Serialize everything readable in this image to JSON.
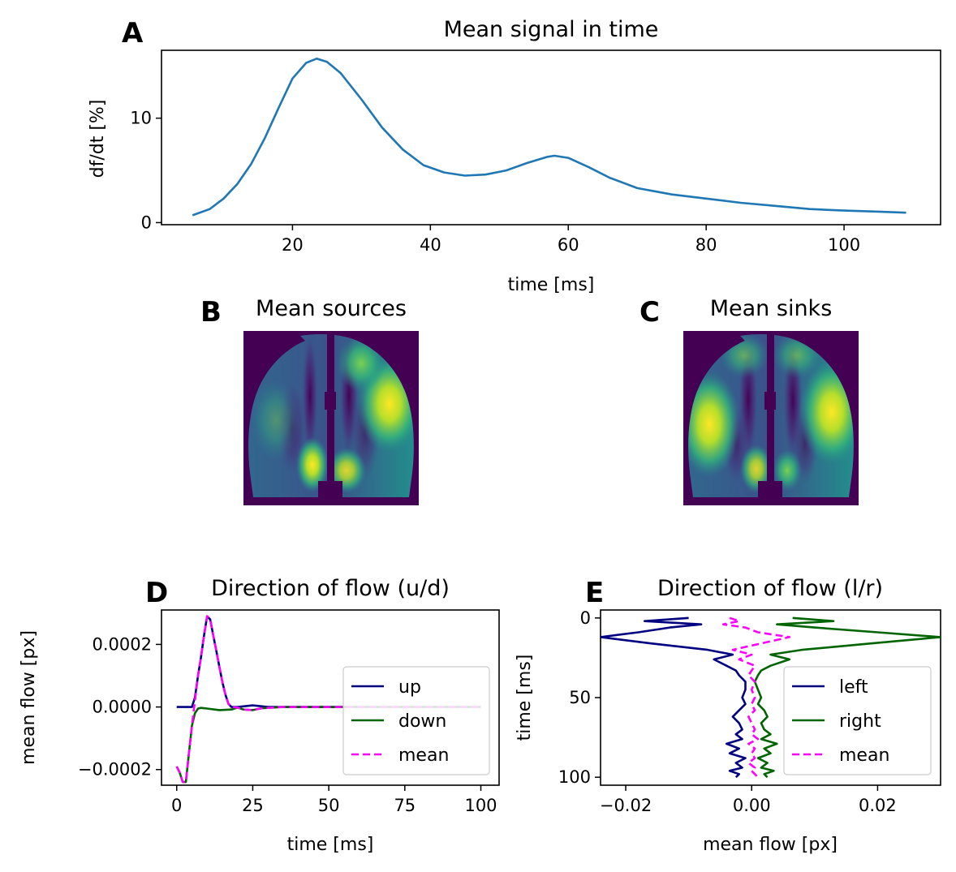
{
  "chart_data": [
    {
      "id": "A",
      "panel_letter": "A",
      "type": "line",
      "title": "Mean signal in time",
      "xlabel": "time [ms]",
      "ylabel": "df/dt [%]",
      "xlim": [
        1,
        114
      ],
      "ylim": [
        -0.2,
        16.5
      ],
      "xticks": [
        20,
        40,
        60,
        80,
        100
      ],
      "yticks": [
        0,
        10
      ],
      "grid": false,
      "series": [
        {
          "color": "#1f77b4",
          "x": [
            5.5,
            8,
            10,
            12,
            14,
            16,
            18,
            20,
            22,
            23.5,
            25,
            27,
            30,
            33,
            36,
            39,
            42,
            45,
            48,
            51,
            54,
            57,
            58,
            60,
            63,
            66,
            70,
            75,
            80,
            85,
            90,
            95,
            100,
            105,
            109
          ],
          "y": [
            0.7,
            1.3,
            2.3,
            3.7,
            5.6,
            8.1,
            11.0,
            13.8,
            15.3,
            15.7,
            15.4,
            14.3,
            11.8,
            9.1,
            7.0,
            5.5,
            4.8,
            4.5,
            4.6,
            5.0,
            5.7,
            6.3,
            6.4,
            6.2,
            5.3,
            4.3,
            3.3,
            2.7,
            2.3,
            1.9,
            1.6,
            1.3,
            1.15,
            1.05,
            0.95
          ]
        }
      ]
    },
    {
      "id": "B",
      "panel_letter": "B",
      "type": "heatmap",
      "title": "Mean sources",
      "colormap": "viridis",
      "axes": "off",
      "hotspots": [
        "right lateral",
        "left posterior-medial",
        "right posterior-medial",
        "right anterior"
      ]
    },
    {
      "id": "C",
      "panel_letter": "C",
      "type": "heatmap",
      "title": "Mean sinks",
      "colormap": "viridis",
      "axes": "off",
      "hotspots": [
        "left lateral",
        "right lateral",
        "left posterior-medial",
        "right posterior-medial"
      ]
    },
    {
      "id": "D",
      "panel_letter": "D",
      "type": "line",
      "title": "Direction of flow (u/d)",
      "xlabel": "time [ms]",
      "ylabel": "mean flow [px]",
      "xlim": [
        -5,
        106
      ],
      "ylim": [
        -0.00025,
        0.00031
      ],
      "xticks": [
        0,
        25,
        50,
        75,
        100
      ],
      "yticks": [
        -0.0002,
        0.0,
        0.0002
      ],
      "ytick_labels": [
        "−0.0002",
        "0.0000",
        "0.0002"
      ],
      "legend": "lower right",
      "series": [
        {
          "name": "up",
          "color": "#000080",
          "style": "solid",
          "x": [
            0,
            5,
            6,
            7,
            8,
            9,
            10,
            11,
            12,
            13,
            14,
            15,
            16,
            17,
            18,
            20,
            25,
            30,
            40,
            100
          ],
          "y": [
            0,
            0,
            3e-05,
            0.0001,
            0.00016,
            0.00023,
            0.00029,
            0.00028,
            0.00023,
            0.00018,
            0.00013,
            8e-05,
            4e-05,
            1e-05,
            0,
            0,
            5e-06,
            0,
            0,
            0
          ]
        },
        {
          "name": "down",
          "color": "#006400",
          "style": "solid",
          "x": [
            0,
            1,
            2,
            3,
            4,
            5,
            6,
            7,
            8,
            10,
            14,
            18,
            20,
            22,
            25,
            28,
            35,
            50,
            100
          ],
          "y": [
            -0.00019,
            -0.00021,
            -0.00024,
            -0.00024,
            -0.00015,
            -6e-05,
            -2e-05,
            -5e-06,
            -3e-06,
            -5e-06,
            -1e-05,
            -8e-06,
            -2e-06,
            -8e-06,
            -1e-05,
            -4e-06,
            0,
            0,
            0
          ]
        },
        {
          "name": "mean",
          "color": "#ff00ff",
          "style": "dashed",
          "x": [
            0,
            1,
            2,
            3,
            4,
            5,
            6,
            7,
            8,
            9,
            10,
            11,
            12,
            13,
            14,
            15,
            16,
            17,
            18,
            20,
            22,
            25,
            28,
            35,
            50,
            100
          ],
          "y": [
            -0.00019,
            -0.00021,
            -0.00024,
            -0.00024,
            -0.00015,
            -6e-05,
            2e-05,
            0.0001,
            0.00016,
            0.00023,
            0.00029,
            0.00028,
            0.00023,
            0.00018,
            0.00013,
            8e-05,
            4e-05,
            1e-05,
            0,
            -2e-06,
            -8e-06,
            -1e-05,
            -4e-06,
            0,
            0,
            0
          ]
        }
      ]
    },
    {
      "id": "E",
      "panel_letter": "E",
      "type": "line",
      "title": "Direction of flow (l/r)",
      "xlabel": "mean flow [px]",
      "ylabel": "time [ms]",
      "xlim": [
        -0.024,
        0.03
      ],
      "ylim": [
        105,
        -5
      ],
      "y_inverted": true,
      "xticks": [
        -0.02,
        0.0,
        0.02
      ],
      "xtick_labels": [
        "−0.02",
        "0.00",
        "0.02"
      ],
      "yticks": [
        0,
        50,
        100
      ],
      "legend": "lower right",
      "series": [
        {
          "name": "left",
          "color": "#000080",
          "style": "solid",
          "x": [
            -0.01,
            -0.017,
            -0.008,
            -0.013,
            -0.018,
            -0.024,
            -0.016,
            -0.007,
            -0.003,
            -0.006,
            -0.004,
            -0.0025,
            -0.002,
            -0.001,
            -0.001,
            -0.0015,
            -0.001,
            -0.002,
            -0.003,
            -0.002,
            -0.0015,
            -0.0025,
            -0.0015,
            -0.004,
            -0.002,
            -0.0035,
            -0.001,
            -0.0025,
            -0.0015,
            -0.0035,
            -0.002,
            -0.0025
          ],
          "y": [
            0,
            2,
            4,
            6,
            9,
            12,
            16,
            20,
            23,
            26,
            30,
            33,
            36,
            40,
            45,
            50,
            54,
            58,
            62,
            66,
            70,
            73,
            76,
            79,
            82,
            85,
            88,
            91,
            94,
            96,
            98,
            100
          ]
        },
        {
          "name": "right",
          "color": "#006400",
          "style": "solid",
          "x": [
            0.0065,
            0.013,
            0.004,
            0.01,
            0.02,
            0.03,
            0.019,
            0.008,
            0.003,
            0.006,
            0.003,
            0.0015,
            0.001,
            0.0005,
            0.001,
            0.0015,
            0.001,
            0.002,
            0.0025,
            0.0015,
            0.002,
            0.003,
            0.0015,
            0.004,
            0.002,
            0.003,
            0.001,
            0.0025,
            0.0015,
            0.0035,
            0.002,
            0.0025
          ],
          "y": [
            0,
            2,
            4,
            6,
            9,
            12,
            16,
            20,
            23,
            26,
            30,
            33,
            36,
            40,
            45,
            50,
            54,
            58,
            62,
            66,
            70,
            73,
            76,
            79,
            82,
            85,
            88,
            91,
            94,
            96,
            98,
            100
          ]
        },
        {
          "name": "mean",
          "color": "#ff00ff",
          "style": "dashed",
          "x": [
            -0.0035,
            -0.002,
            -0.0045,
            -0.001,
            0.001,
            0.006,
            0.0015,
            -0.003,
            0.0,
            -0.002,
            0.0005,
            0.0,
            -0.0005,
            0.0005,
            0.0,
            0.0005,
            0.0,
            0.0005,
            -0.0005,
            0.0,
            0.0005,
            0.0,
            0.001,
            -0.0005,
            0.0005,
            0.0,
            0.0005,
            -0.0005,
            0.0005,
            0.0,
            0.0005,
            0.001
          ],
          "y": [
            0,
            2,
            4,
            6,
            9,
            12,
            16,
            20,
            23,
            26,
            30,
            33,
            36,
            40,
            45,
            50,
            54,
            58,
            62,
            66,
            70,
            73,
            76,
            79,
            82,
            85,
            88,
            91,
            94,
            96,
            98,
            100
          ]
        }
      ]
    }
  ]
}
